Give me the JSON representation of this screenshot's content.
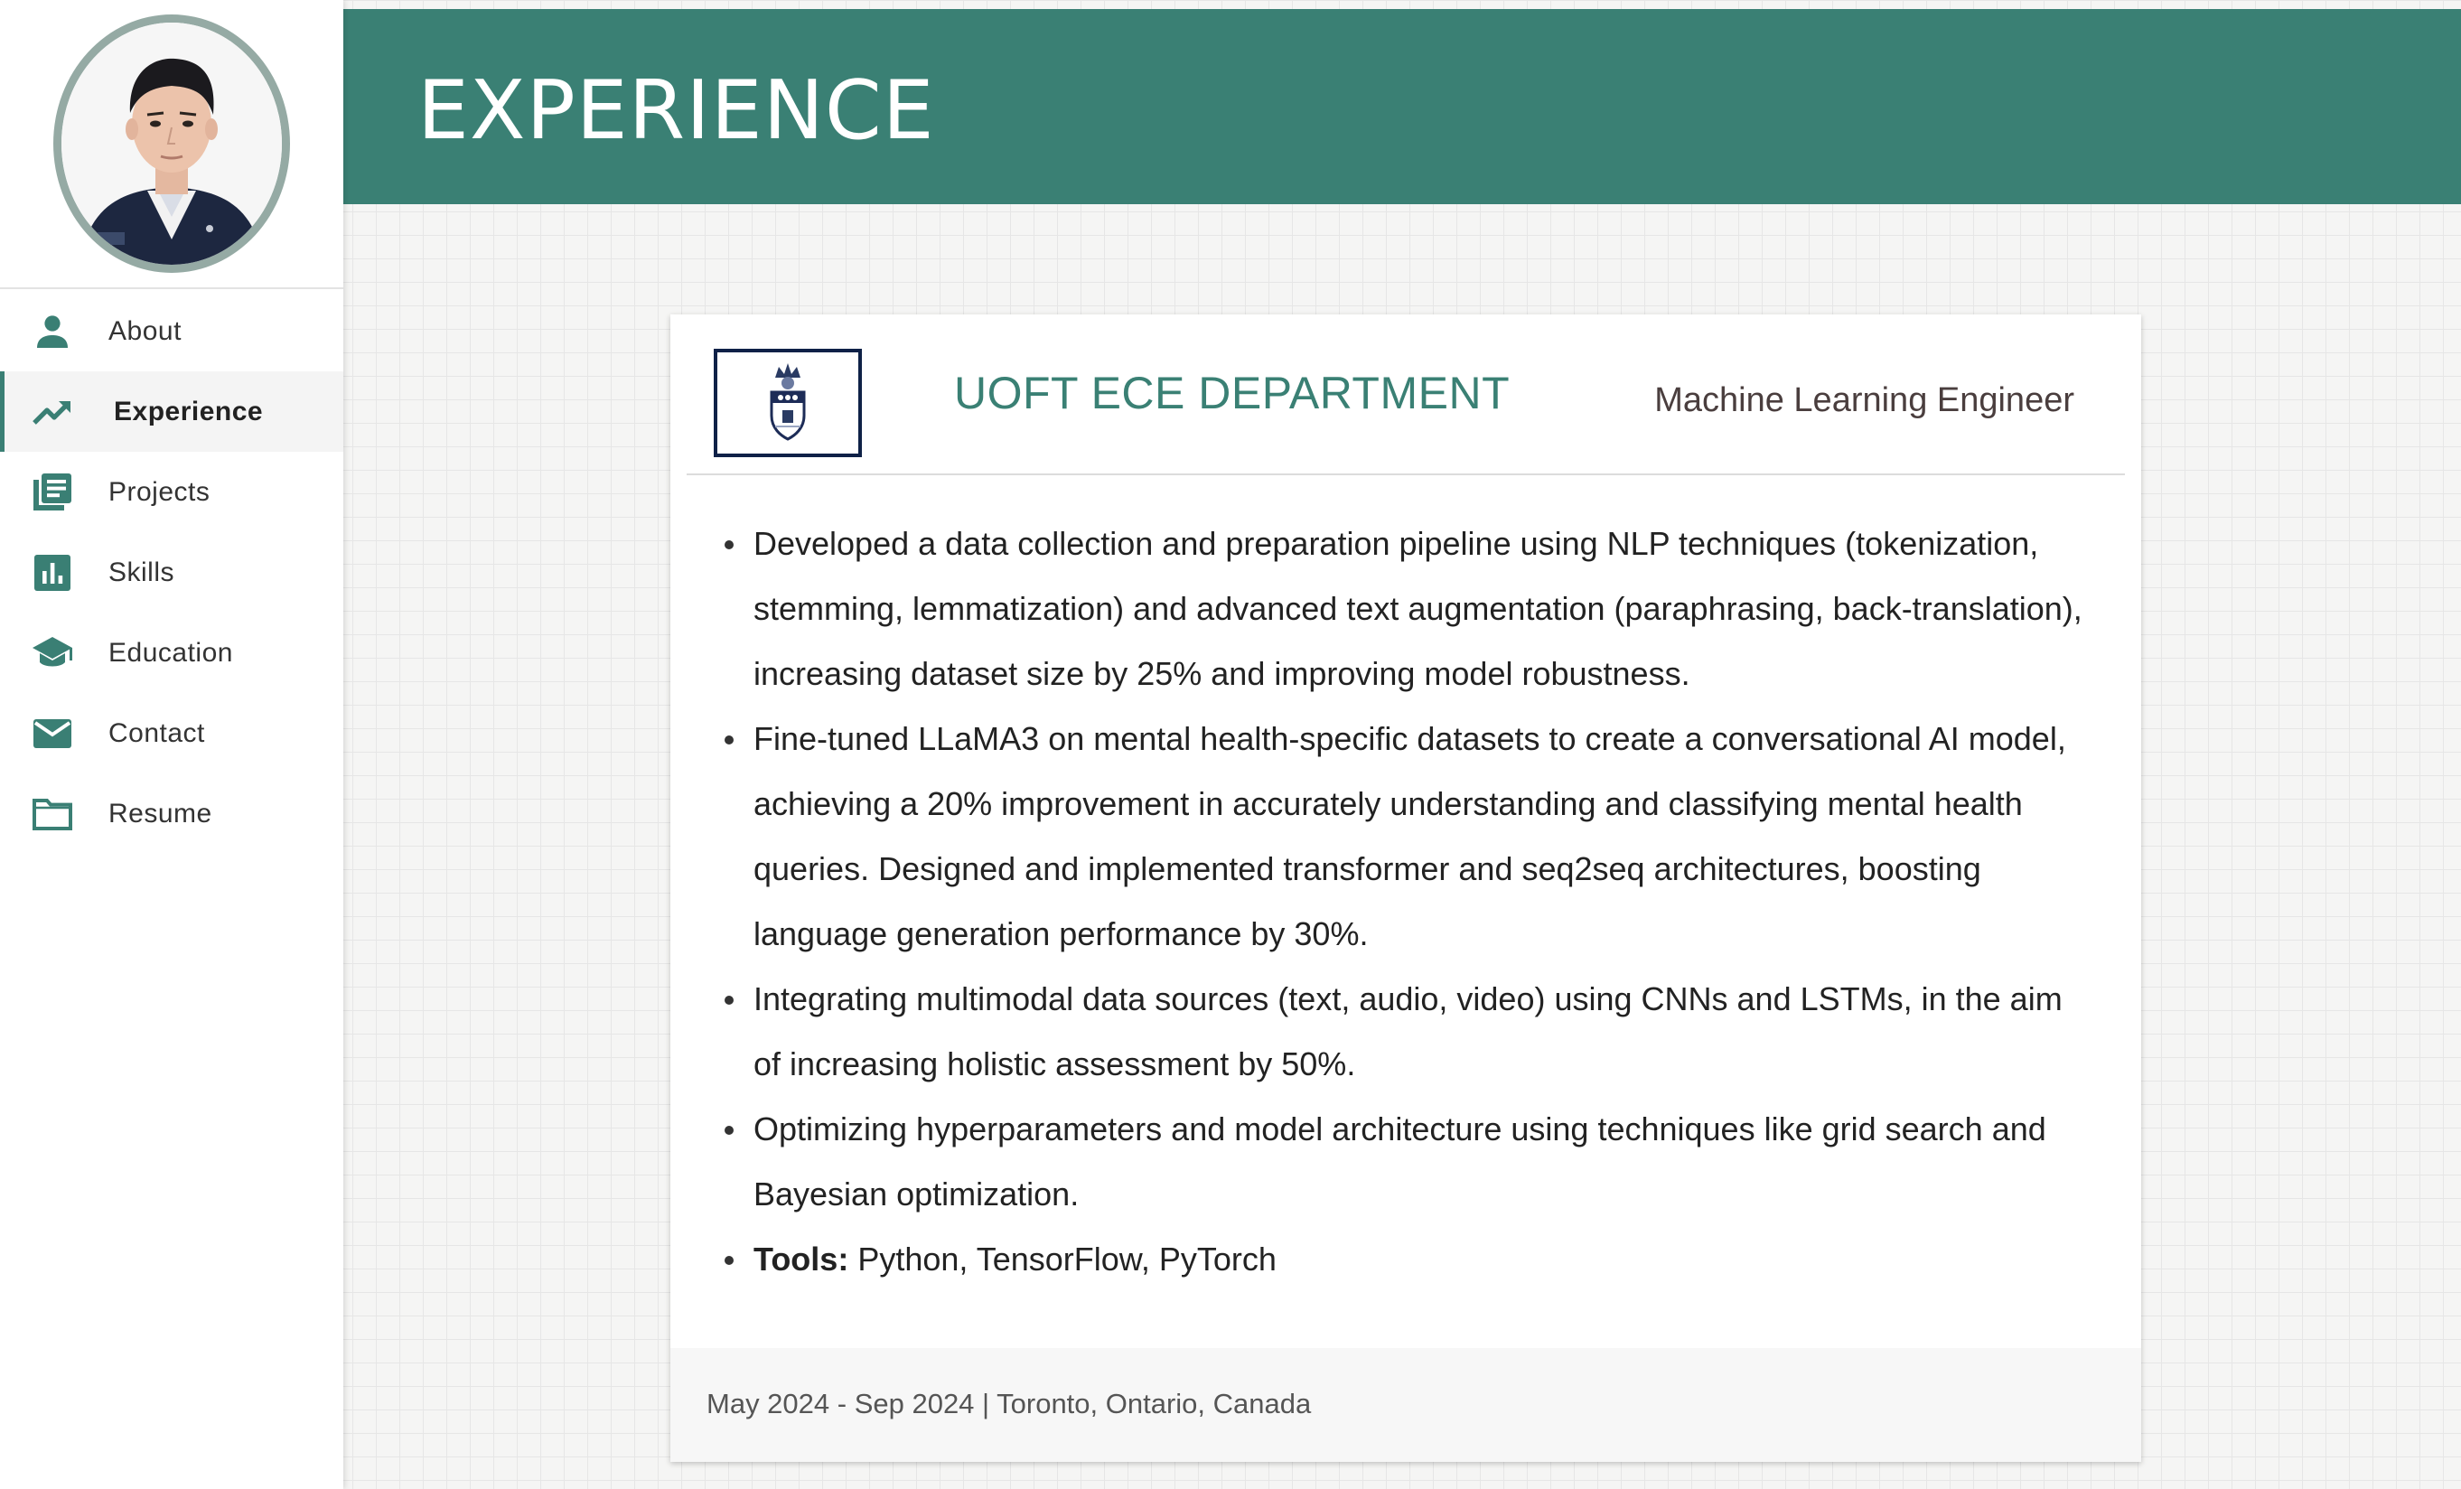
{
  "sidebar": {
    "items": [
      {
        "label": "About",
        "icon": "person-icon"
      },
      {
        "label": "Experience",
        "icon": "trending-up-icon",
        "active": true
      },
      {
        "label": "Projects",
        "icon": "library-books-icon"
      },
      {
        "label": "Skills",
        "icon": "bar-chart-icon"
      },
      {
        "label": "Education",
        "icon": "graduation-cap-icon"
      },
      {
        "label": "Contact",
        "icon": "mail-icon"
      },
      {
        "label": "Resume",
        "icon": "folder-icon"
      }
    ]
  },
  "header": {
    "title": "EXPERIENCE"
  },
  "experience": {
    "organization": "UOFT ECE DEPARTMENT",
    "role": "Machine Learning Engineer",
    "bullets": [
      "Developed a data collection and preparation pipeline using NLP techniques (tokenization, stemming, lemmatization) and advanced text augmentation (paraphrasing, back-translation), increasing dataset size by 25% and improving model robustness.",
      "Fine-tuned LLaMA3 on mental health-specific datasets to create a conversational AI model, achieving a 20% improvement in accurately understanding and classifying mental health queries. Designed and implemented transformer and seq2seq architectures, boosting language generation performance by 30%.",
      "Integrating multimodal data sources (text, audio, video) using CNNs and LSTMs, in the aim of increasing holistic assessment by 50%.",
      "Optimizing hyperparameters and model architecture using techniques like grid search and Bayesian optimization."
    ],
    "tools_label": "Tools:",
    "tools_value": " Python, TensorFlow, PyTorch",
    "footer": "May 2024 - Sep 2024 | Toronto, Ontario, Canada"
  },
  "colors": {
    "accent": "#3a8074",
    "icon": "#3a7f74",
    "role_text": "#4a3e3e",
    "logo_border": "#0f2147"
  }
}
